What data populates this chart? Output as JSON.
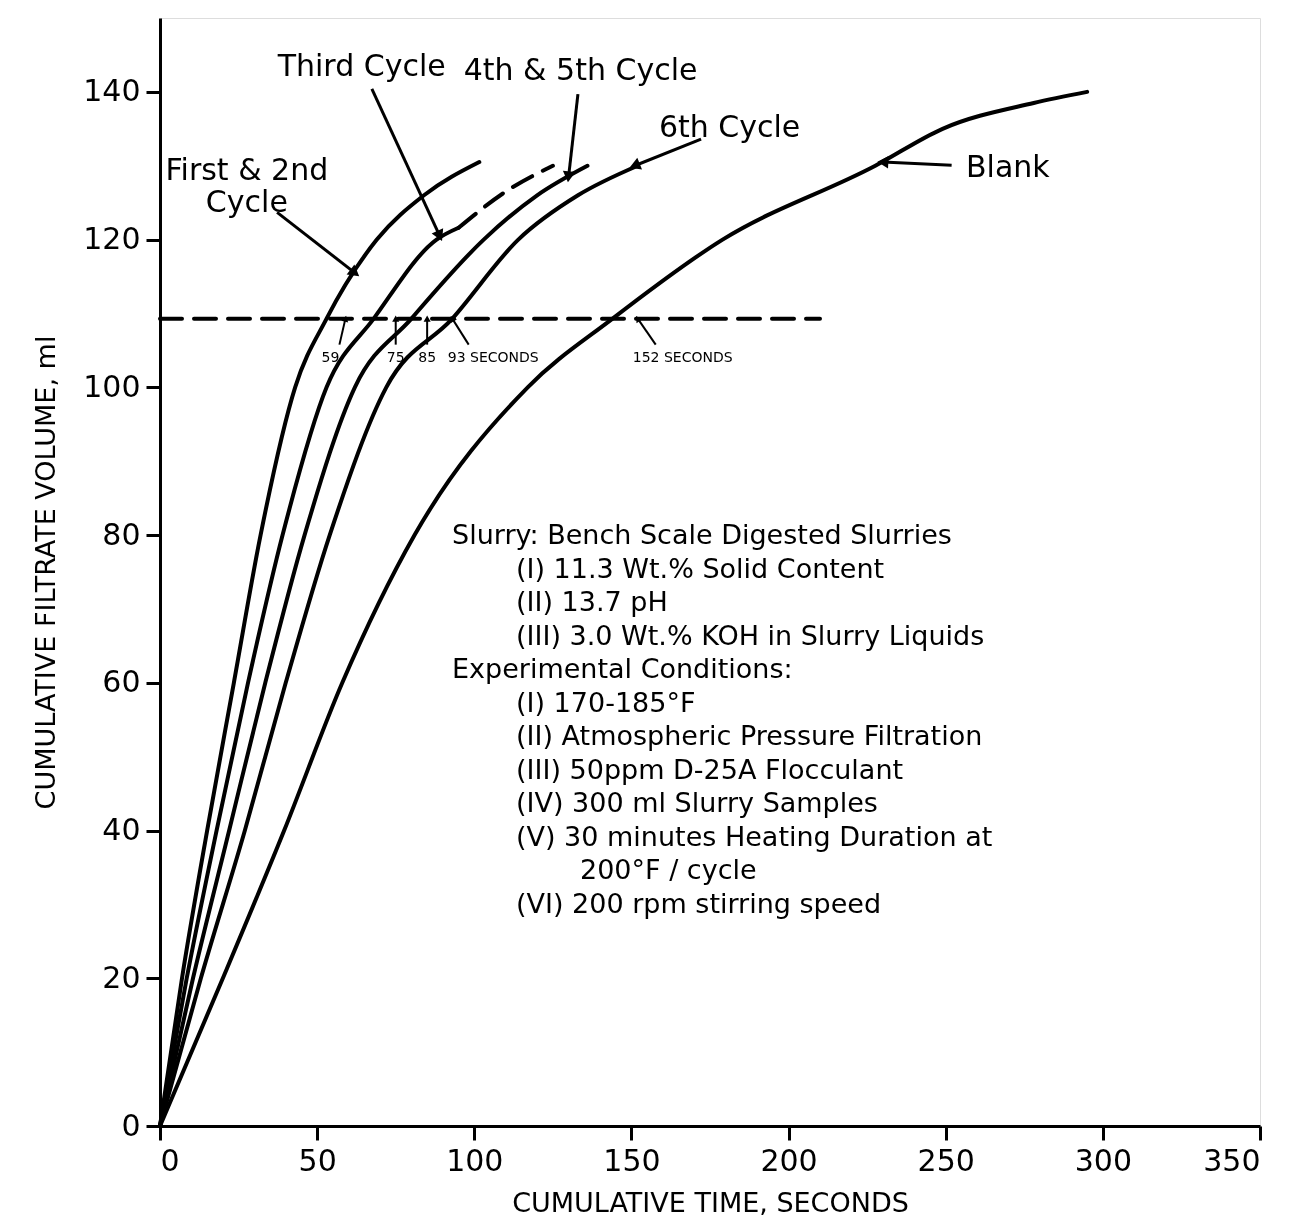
{
  "chart_data": {
    "type": "line",
    "xlabel": "CUMULATIVE TIME, SECONDS",
    "ylabel": "CUMULATIVE FILTRATE VOLUME, ml",
    "xlim": [
      0,
      350
    ],
    "xticks": [
      0,
      50,
      100,
      150,
      200,
      250,
      300,
      350
    ],
    "ylim": [
      0,
      150
    ],
    "yticks": [
      0,
      20,
      40,
      60,
      80,
      100,
      120,
      140
    ],
    "grid": false,
    "marker": "none",
    "series": [
      {
        "color": "#000000",
        "line_style": "solid",
        "x": [
          0,
          7,
          15,
          23.5,
          32,
          43,
          53,
          69,
          84,
          101.6
        ],
        "values": [
          0,
          20,
          40,
          60,
          80,
          100,
          109.3,
          120,
          126,
          130.5
        ]
      },
      {
        "color": "#000000",
        "line_style": "solid",
        "x": [
          0,
          8.5,
          18,
          28,
          39,
          53,
          68,
          88,
          95
        ],
        "values": [
          0,
          20,
          40,
          60,
          80,
          100,
          109.3,
          120,
          121.6
        ]
      },
      {
        "color": "#000000",
        "line_style": "dashed",
        "x": [
          95,
          110,
          125
        ],
        "values": [
          121.6,
          126.5,
          130
        ]
      },
      {
        "color": "#000000",
        "line_style": "solid",
        "x": [
          0,
          10.5,
          22,
          33.5,
          46,
          62,
          80,
          103,
          120,
          136
        ],
        "values": [
          0,
          20,
          40,
          60,
          80,
          100,
          109.3,
          120,
          126,
          130
        ]
      },
      {
        "color": "#000000",
        "line_style": "solid",
        "x": [
          0,
          13,
          27,
          40,
          54,
          72,
          93,
          114,
          133,
          152
        ],
        "values": [
          0,
          20,
          40,
          60,
          80,
          100,
          109.3,
          120,
          126,
          130
        ]
      },
      {
        "color": "#000000",
        "line_style": "solid",
        "x": [
          0,
          20,
          39.5,
          58,
          81,
          117,
          144,
          179,
          227.6,
          249,
          278,
          295
        ],
        "values": [
          0,
          20,
          40,
          60,
          80,
          100,
          109.3,
          120,
          130,
          135,
          138.5,
          140
        ]
      },
      {
        "color": "#000000",
        "line_style": "dashed",
        "x": [
          0,
          210
        ],
        "values": [
          109.3,
          109.3
        ]
      }
    ],
    "annotations": [
      {
        "text": "First & 2nd\nCycle",
        "x": 62,
        "y": 115.5
      },
      {
        "text": "Third Cycle",
        "x": 89,
        "y": 120.5
      },
      {
        "text": "4th & 5th Cycle",
        "x": 130,
        "y": 128.5
      },
      {
        "text": "6th Cycle",
        "x": 151,
        "y": 130
      },
      {
        "text": "Blank",
        "x": 230,
        "y": 130.5
      },
      {
        "text": "59",
        "x": 59,
        "y": 109.3
      },
      {
        "text": "75",
        "x": 75,
        "y": 109.3
      },
      {
        "text": "85",
        "x": 85,
        "y": 109.3
      },
      {
        "text": "93 SECONDS",
        "x": 93,
        "y": 109.3
      },
      {
        "text": "152 SECONDS",
        "x": 152,
        "y": 109.3
      },
      "Slurry: Bench Scale Digested Slurries",
      "    (I) 11.3 Wt.% Solid Content",
      "    (II) 13.7 pH",
      "    (III) 3.0 Wt.% KOH in Slurry Liquids",
      "Experimental Conditions:",
      "    (I) 170-185°F",
      "    (II) Atmospheric Pressure Filtration",
      "    (III) 50ppm D-25A Flocculant",
      "    (IV) 300 ml Slurry Samples",
      "    (V) 30 minutes Heating Duration at",
      "        200°F / cycle",
      "    (VI) 200 rpm stirring speed"
    ]
  }
}
